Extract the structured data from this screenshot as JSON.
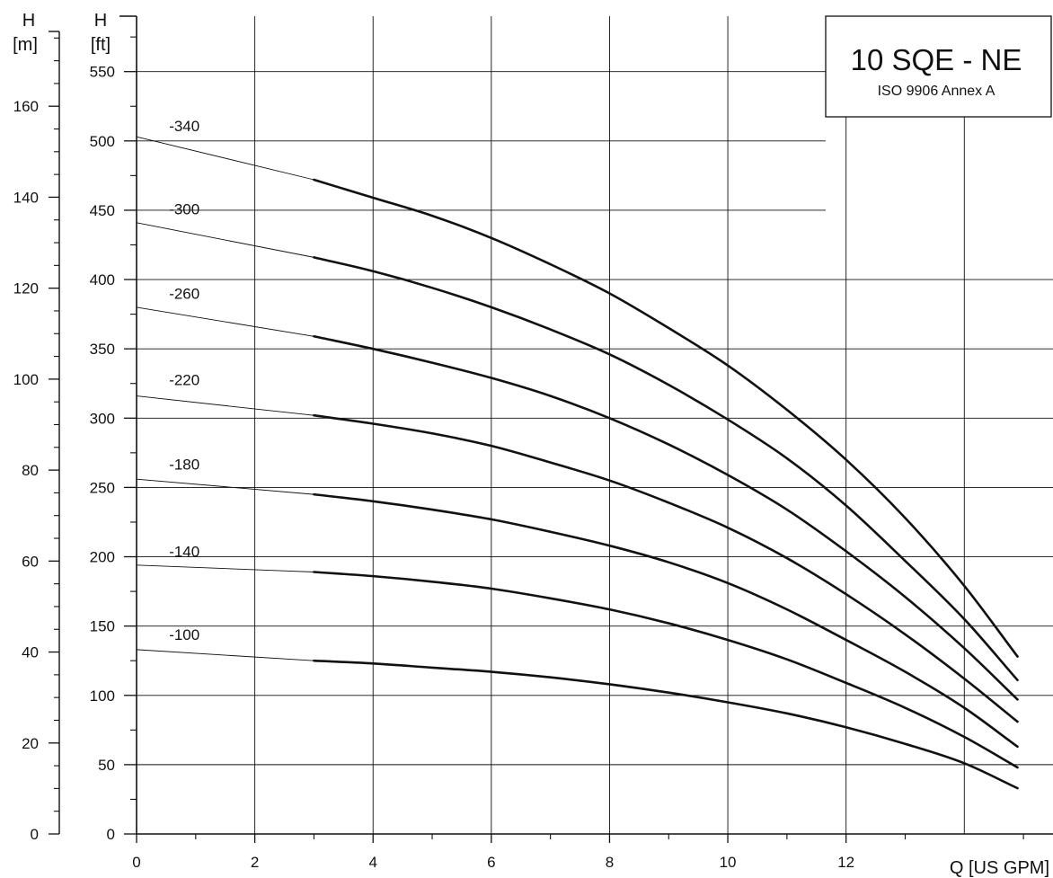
{
  "chart_data": {
    "type": "line",
    "title": "10 SQE - NE",
    "subtitle": "ISO 9906 Annex A",
    "xlabel": "Q [US GPM]",
    "ylabel_left": {
      "symbol": "H",
      "unit": "[m]"
    },
    "ylabel_right": {
      "symbol": "H",
      "unit": "[ft]"
    },
    "xlim": [
      0,
      15.5
    ],
    "ylim_ft": [
      0,
      590
    ],
    "ylim_m": [
      0,
      179.8
    ],
    "x_ticks": [
      0,
      2,
      4,
      6,
      8,
      10,
      12
    ],
    "x_tick_labels": [
      "0",
      "2",
      "4",
      "6",
      "8",
      "10",
      "12"
    ],
    "y_ticks_ft": [
      0,
      50,
      100,
      150,
      200,
      250,
      300,
      350,
      400,
      450,
      500,
      550
    ],
    "y_tick_labels_ft": [
      "0",
      "50",
      "100",
      "150",
      "200",
      "250",
      "300",
      "350",
      "400",
      "450",
      "500",
      "550"
    ],
    "y_ticks_m": [
      0,
      20,
      40,
      60,
      80,
      100,
      120,
      140,
      160
    ],
    "y_tick_labels_m": [
      "0",
      "20",
      "40",
      "60",
      "80",
      "100",
      "120",
      "140",
      "160"
    ],
    "grid": true,
    "legend": "top-right",
    "line_color": "#111111",
    "series": [
      {
        "name": "-340",
        "label_x": 0.55,
        "label_y": 507,
        "x": [
          0,
          3,
          4,
          5,
          6,
          7,
          8,
          9,
          10,
          11,
          12,
          13,
          14,
          14.9
        ],
        "y": [
          503,
          472,
          459,
          446,
          430,
          411,
          390,
          365,
          338,
          306,
          270,
          228,
          179,
          128
        ]
      },
      {
        "name": "-300",
        "label_x": 0.55,
        "label_y": 447,
        "x": [
          0,
          3,
          4,
          5,
          6,
          7,
          8,
          9,
          10,
          11,
          12,
          13,
          14,
          14.9
        ],
        "y": [
          441,
          416,
          406,
          394,
          380,
          364,
          346,
          324,
          299,
          271,
          237,
          197,
          155,
          111
        ]
      },
      {
        "name": "-260",
        "label_x": 0.55,
        "label_y": 386,
        "x": [
          0,
          3,
          4,
          5,
          6,
          7,
          8,
          9,
          10,
          11,
          12,
          13,
          14,
          14.9
        ],
        "y": [
          380,
          359,
          350,
          340,
          329,
          316,
          300,
          281,
          259,
          234,
          204,
          171,
          134,
          97
        ]
      },
      {
        "name": "-220",
        "label_x": 0.55,
        "label_y": 324,
        "x": [
          0,
          3,
          4,
          5,
          6,
          7,
          8,
          9,
          10,
          11,
          12,
          13,
          14,
          14.9
        ],
        "y": [
          316,
          302,
          296,
          289,
          280,
          268,
          255,
          239,
          221,
          199,
          173,
          144,
          112,
          81
        ]
      },
      {
        "name": "-180",
        "label_x": 0.55,
        "label_y": 263,
        "x": [
          0,
          3,
          4,
          5,
          6,
          7,
          8,
          9,
          10,
          11,
          12,
          13,
          14,
          14.9
        ],
        "y": [
          256,
          245,
          240,
          234,
          227,
          218,
          208,
          196,
          181,
          162,
          140,
          117,
          91,
          63
        ]
      },
      {
        "name": "-140",
        "label_x": 0.55,
        "label_y": 200,
        "x": [
          0,
          3,
          4,
          5,
          6,
          7,
          8,
          9,
          10,
          11,
          12,
          13,
          14,
          14.9
        ],
        "y": [
          194,
          189,
          186,
          182,
          177,
          170,
          162,
          152,
          140,
          126,
          109,
          91,
          70,
          48
        ]
      },
      {
        "name": "-100",
        "label_x": 0.55,
        "label_y": 140,
        "x": [
          0,
          3,
          4,
          5,
          6,
          7,
          8,
          9,
          10,
          11,
          12,
          13,
          14,
          14.9
        ],
        "y": [
          133,
          125,
          123,
          120,
          117,
          113,
          108,
          102,
          95,
          87,
          77,
          65,
          51,
          33
        ]
      }
    ]
  }
}
